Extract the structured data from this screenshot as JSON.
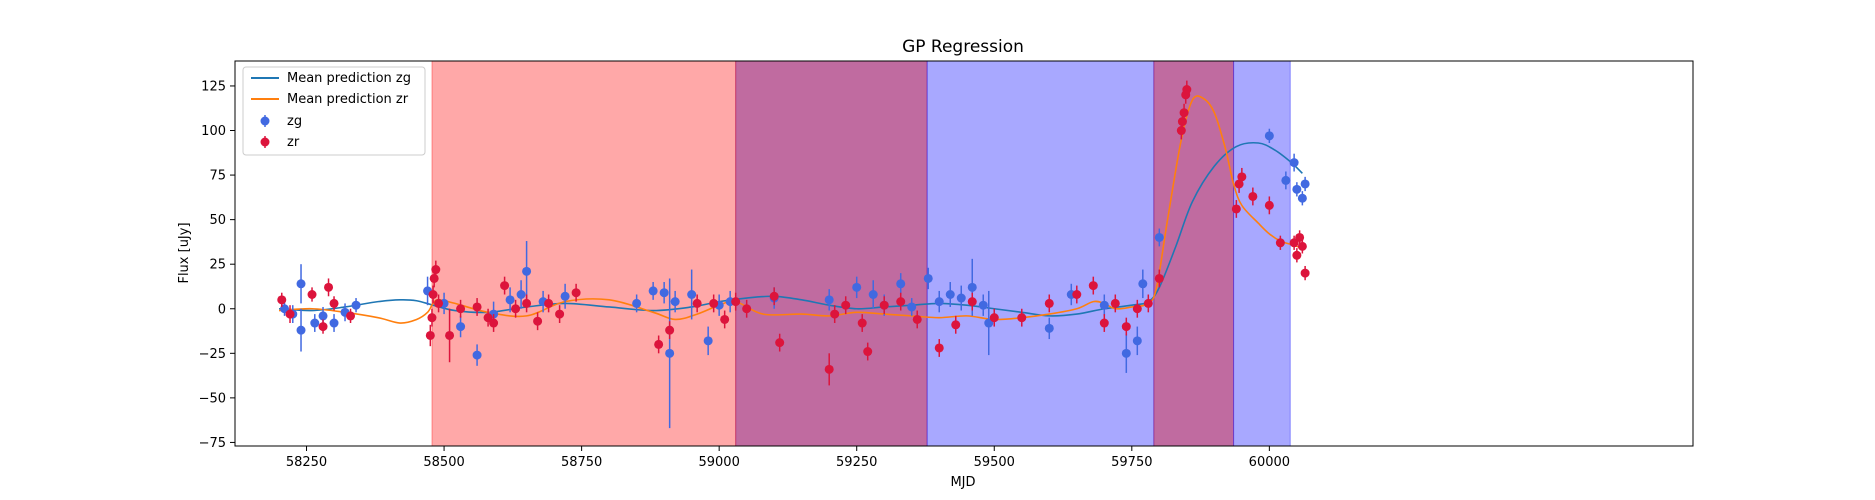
{
  "chart_data": {
    "type": "scatter",
    "title": "GP Regression",
    "xlabel": "MJD",
    "ylabel": "Flux [uJy]",
    "xlim": [
      58120,
      60770
    ],
    "ylim": [
      -77,
      139
    ],
    "xticks": [
      58250,
      58500,
      58750,
      59000,
      59250,
      59500,
      59750,
      60000
    ],
    "yticks": [
      -75,
      -50,
      -25,
      0,
      25,
      50,
      75,
      100,
      125
    ],
    "grid": false,
    "legend_position": "top-left",
    "legend": [
      "Mean prediction zg",
      "Mean prediction zr",
      "zg",
      "zr"
    ],
    "shaded_regions": [
      {
        "x0": 58478,
        "x1": 59030,
        "color": "#ff0000",
        "opacity": 0.34
      },
      {
        "x0": 59030,
        "x1": 59378,
        "color": "#93005c",
        "opacity": 0.58
      },
      {
        "x0": 59378,
        "x1": 59790,
        "color": "#0000ff",
        "opacity": 0.34
      },
      {
        "x0": 59790,
        "x1": 59935,
        "color": "#93005c",
        "opacity": 0.58
      },
      {
        "x0": 59935,
        "x1": 60038,
        "color": "#0000ff",
        "opacity": 0.34
      }
    ],
    "series": [
      {
        "name": "Mean prediction zg",
        "kind": "line",
        "color": "#1f77b4",
        "x": [
          58200,
          58260,
          58320,
          58380,
          58420,
          58450,
          58480,
          58520,
          58580,
          58650,
          58720,
          58800,
          58880,
          58950,
          59000,
          59050,
          59100,
          59150,
          59200,
          59250,
          59300,
          59350,
          59400,
          59450,
          59500,
          59550,
          59600,
          59650,
          59700,
          59750,
          59780,
          59800,
          59830,
          59860,
          59900,
          59940,
          59980,
          60010,
          60040,
          60060
        ],
        "y": [
          0,
          -1,
          1,
          4,
          5,
          4.5,
          2,
          -1,
          -2,
          1,
          3,
          1,
          -1,
          1,
          4,
          6,
          7,
          5,
          2,
          0,
          1,
          2,
          3,
          2,
          0,
          -2,
          -4,
          -3,
          0,
          2,
          4,
          12,
          35,
          60,
          80,
          91,
          93,
          89,
          82,
          76
        ]
      },
      {
        "name": "Mean prediction zr",
        "kind": "line",
        "color": "#ff7f0e",
        "x": [
          58200,
          58260,
          58320,
          58380,
          58420,
          58450,
          58470,
          58480,
          58490,
          58520,
          58580,
          58650,
          58720,
          58800,
          58880,
          58920,
          58960,
          59000,
          59030,
          59080,
          59150,
          59200,
          59250,
          59300,
          59350,
          59400,
          59450,
          59500,
          59550,
          59600,
          59650,
          59680,
          59700,
          59720,
          59750,
          59780,
          59795,
          59815,
          59840,
          59860,
          59880,
          59900,
          59920,
          59935,
          59950,
          59980,
          60000,
          60020,
          60040,
          60060
        ],
        "y": [
          -1,
          0,
          -2,
          -5,
          -8,
          -6,
          -2,
          3,
          5,
          3,
          -2,
          -4,
          4,
          5,
          -2,
          -6,
          -3,
          2,
          4,
          -3,
          -3,
          -4,
          -2,
          -3,
          -4,
          -5,
          -4,
          -6,
          -5,
          -3,
          0,
          4,
          3,
          0,
          1,
          3,
          12,
          50,
          95,
          117,
          118,
          110,
          90,
          70,
          58,
          48,
          42,
          38,
          36,
          34
        ]
      },
      {
        "name": "zg",
        "kind": "errorbar",
        "color": "#4169e1",
        "x": [
          58210,
          58225,
          58240,
          58240,
          58265,
          58280,
          58300,
          58320,
          58340,
          58470,
          58500,
          58530,
          58560,
          58590,
          58620,
          58640,
          58650,
          58680,
          58720,
          58850,
          58880,
          58900,
          58910,
          58920,
          58950,
          58980,
          59000,
          59020,
          59100,
          59200,
          59250,
          59280,
          59300,
          59330,
          59350,
          59380,
          59400,
          59420,
          59440,
          59460,
          59480,
          59490,
          59600,
          59640,
          59700,
          59740,
          59760,
          59770,
          59800,
          60000,
          60030,
          60045,
          60050,
          60060,
          60065
        ],
        "y": [
          0,
          -3,
          14,
          -12,
          -8,
          -4,
          -8,
          -2,
          2,
          10,
          3,
          -10,
          -26,
          -3,
          5,
          8,
          21,
          4,
          7,
          3,
          10,
          9,
          -25,
          4,
          8,
          -18,
          2,
          4,
          6,
          5,
          12,
          8,
          2,
          14,
          1,
          17,
          4,
          8,
          6,
          12,
          2,
          -8,
          -11,
          8,
          2,
          -25,
          -18,
          14,
          40,
          97,
          72,
          82,
          67,
          62,
          70
        ],
        "err": [
          4,
          5,
          11,
          12,
          5,
          5,
          5,
          5,
          4,
          8,
          6,
          6,
          6,
          7,
          7,
          8,
          17,
          6,
          7,
          5,
          5,
          6,
          42,
          6,
          14,
          8,
          6,
          6,
          6,
          6,
          6,
          8,
          6,
          6,
          5,
          6,
          6,
          7,
          7,
          16,
          6,
          18,
          6,
          6,
          6,
          11,
          8,
          8,
          5,
          4,
          5,
          5,
          4,
          4,
          4
        ]
      },
      {
        "name": "zr",
        "kind": "errorbar",
        "color": "#dc143c",
        "x": [
          58205,
          58220,
          58260,
          58280,
          58290,
          58300,
          58330,
          58475,
          58478,
          58480,
          58482,
          58485,
          58490,
          58510,
          58530,
          58560,
          58580,
          58590,
          58610,
          58630,
          58650,
          58670,
          58690,
          58710,
          58740,
          58890,
          58910,
          58960,
          58990,
          59010,
          59030,
          59050,
          59100,
          59110,
          59200,
          59210,
          59230,
          59260,
          59270,
          59300,
          59330,
          59360,
          59400,
          59430,
          59460,
          59500,
          59550,
          59600,
          59650,
          59680,
          59700,
          59720,
          59740,
          59760,
          59780,
          59800,
          59840,
          59842,
          59845,
          59848,
          59850,
          59940,
          59945,
          59950,
          59970,
          60000,
          60020,
          60045,
          60050,
          60055,
          60060,
          60065
        ],
        "y": [
          5,
          -3,
          8,
          -10,
          12,
          3,
          -4,
          -15,
          -5,
          8,
          17,
          22,
          3,
          -15,
          0,
          1,
          -5,
          -8,
          13,
          0,
          3,
          -7,
          3,
          -3,
          9,
          -20,
          -12,
          3,
          3,
          -6,
          4,
          0,
          7,
          -19,
          -34,
          -3,
          2,
          -8,
          -24,
          2,
          4,
          -6,
          -22,
          -9,
          4,
          -5,
          -5,
          3,
          8,
          13,
          -8,
          3,
          -10,
          0,
          3,
          17,
          100,
          105,
          110,
          120,
          123,
          56,
          70,
          74,
          63,
          58,
          37,
          37,
          30,
          40,
          35,
          20
        ],
        "err": [
          4,
          5,
          4,
          4,
          5,
          4,
          4,
          6,
          5,
          5,
          5,
          5,
          5,
          15,
          5,
          5,
          5,
          5,
          5,
          5,
          5,
          5,
          5,
          5,
          5,
          5,
          5,
          5,
          5,
          5,
          5,
          5,
          5,
          5,
          9,
          5,
          5,
          5,
          5,
          5,
          5,
          5,
          5,
          5,
          5,
          5,
          5,
          5,
          5,
          5,
          5,
          5,
          5,
          5,
          5,
          5,
          5,
          5,
          5,
          5,
          5,
          5,
          5,
          5,
          5,
          5,
          4,
          4,
          4,
          4,
          4,
          4
        ]
      }
    ]
  }
}
